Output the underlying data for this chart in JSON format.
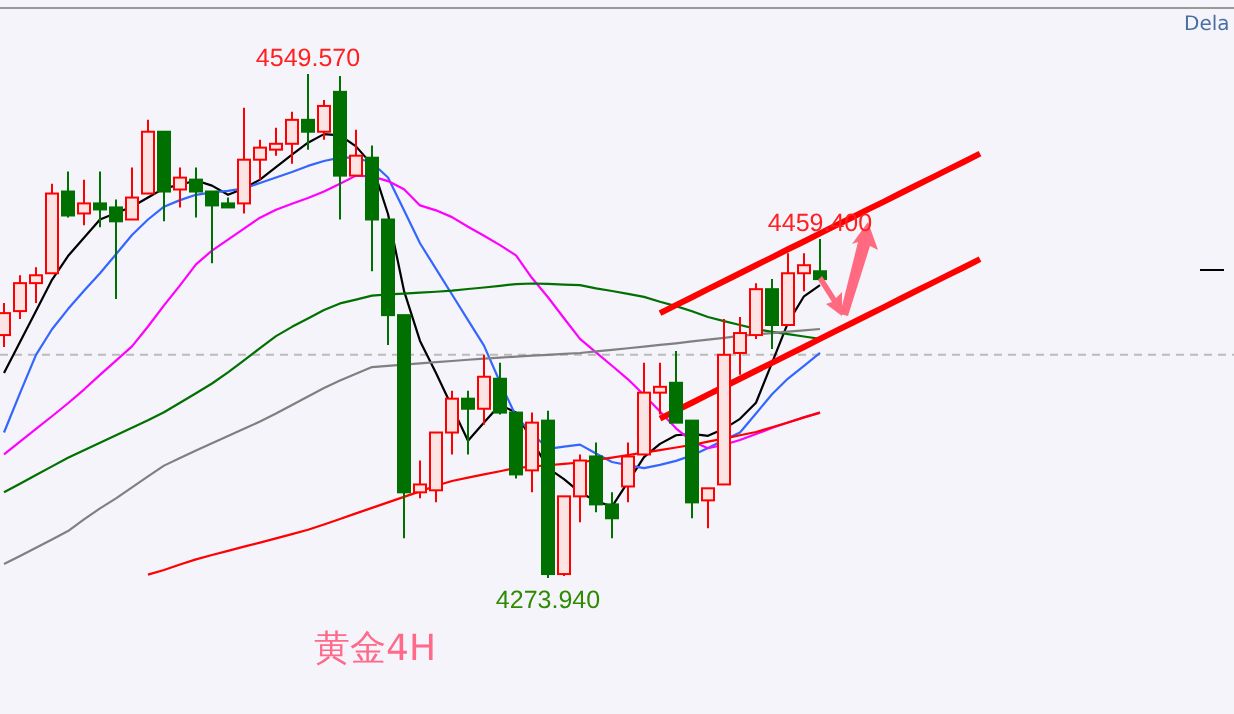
{
  "chart_data": {
    "type": "candlestick",
    "title": "黄金4H",
    "categories": [
      null,
      null,
      null,
      null,
      null,
      null,
      null,
      null,
      null,
      null,
      null,
      null,
      null,
      null,
      null,
      null,
      null,
      null,
      null,
      null,
      null,
      null,
      null,
      null,
      null,
      null,
      null,
      null,
      null,
      null,
      null,
      null,
      null,
      null,
      null,
      null,
      null,
      null,
      null,
      null,
      null,
      null,
      null,
      null,
      null,
      null,
      null,
      null,
      null,
      null,
      null,
      null,
      null,
      null,
      null,
      null,
      null,
      null,
      null,
      null,
      null,
      null
    ],
    "ohlc": [
      [
        4406.8,
        4424.3,
        4400.3,
        4418.8
      ],
      [
        4419.9,
        4439.5,
        4415.6,
        4435.2
      ],
      [
        4435.2,
        4443.9,
        4424.3,
        4439.5
      ],
      [
        4440.6,
        4489.6,
        4440.6,
        4484.2
      ],
      [
        4485.3,
        4496.2,
        4471.1,
        4472.2
      ],
      [
        4473.3,
        4491.8,
        4466.8,
        4478.8
      ],
      [
        4478.8,
        4496.2,
        4465.7,
        4475.5
      ],
      [
        4476.6,
        4480.9,
        4426.5,
        4469.0
      ],
      [
        4470.0,
        4498.4,
        4470.0,
        4482.0
      ],
      [
        4484.2,
        4524.5,
        4484.2,
        4518.0
      ],
      [
        4518.0,
        4518.0,
        4469.0,
        4485.3
      ],
      [
        4486.4,
        4498.4,
        4476.6,
        4492.9
      ],
      [
        4491.8,
        4498.4,
        4471.1,
        4485.3
      ],
      [
        4485.3,
        4485.3,
        4446.1,
        4477.7
      ],
      [
        4478.8,
        4482.0,
        4476.6,
        4476.6
      ],
      [
        4478.8,
        4531.1,
        4473.3,
        4502.7
      ],
      [
        4502.7,
        4513.6,
        4491.8,
        4509.3
      ],
      [
        4508.2,
        4520.2,
        4504.9,
        4511.4
      ],
      [
        4511.4,
        4528.9,
        4500.5,
        4524.5
      ],
      [
        4524.5,
        4549.57,
        4508.2,
        4518.0
      ],
      [
        4518.0,
        4535.4,
        4513.6,
        4532.1
      ],
      [
        4539.8,
        4548.5,
        4470.0,
        4494.0
      ],
      [
        4494.0,
        4519.1,
        4494.0,
        4504.9
      ],
      [
        4503.8,
        4510.4,
        4441.7,
        4470.0
      ],
      [
        4470.0,
        4470.0,
        4401.4,
        4417.7
      ],
      [
        4417.7,
        4417.7,
        4295.7,
        4320.8
      ],
      [
        4320.8,
        4338.2,
        4317.5,
        4325.1
      ],
      [
        4321.9,
        4353.5,
        4315.3,
        4353.5
      ],
      [
        4353.5,
        4376.3,
        4341.5,
        4372.0
      ],
      [
        4372.0,
        4376.3,
        4341.5,
        4366.5
      ],
      [
        4366.5,
        4396.0,
        4357.8,
        4384.0
      ],
      [
        4382.9,
        4391.6,
        4363.3,
        4364.4
      ],
      [
        4364.4,
        4364.4,
        4328.4,
        4330.6
      ],
      [
        4332.8,
        4364.4,
        4320.8,
        4358.9
      ],
      [
        4360.0,
        4365.4,
        4273.94,
        4276.1
      ],
      [
        4276.1,
        4318.6,
        4275.0,
        4318.6
      ],
      [
        4318.6,
        4341.5,
        4304.4,
        4338.2
      ],
      [
        4340.4,
        4348.0,
        4309.9,
        4314.2
      ],
      [
        4314.2,
        4320.8,
        4295.7,
        4306.6
      ],
      [
        4324.0,
        4348.0,
        4315.3,
        4340.4
      ],
      [
        4341.5,
        4391.6,
        4341.5,
        4375.3
      ],
      [
        4375.3,
        4391.6,
        4363.3,
        4378.5
      ],
      [
        4380.7,
        4398.1,
        4358.9,
        4358.9
      ],
      [
        4360.0,
        4360.0,
        4306.6,
        4315.3
      ],
      [
        4316.4,
        4323.0,
        4301.2,
        4323.0
      ],
      [
        4325.1,
        4415.6,
        4325.1,
        4396.0
      ],
      [
        4397.0,
        4416.7,
        4385.1,
        4407.9
      ],
      [
        4406.8,
        4435.2,
        4404.7,
        4431.9
      ],
      [
        4431.9,
        4437.4,
        4399.2,
        4412.3
      ],
      [
        4412.3,
        4451.5,
        4412.3,
        4440.6
      ],
      [
        4440.6,
        4451.5,
        4430.8,
        4445.0
      ],
      [
        4441.7,
        4459.4,
        4437.4,
        4437.4
      ],
      null,
      null,
      null,
      null,
      null,
      null,
      null,
      null,
      null,
      null
    ],
    "series": [
      {
        "type": "line",
        "color": "#000000",
        "values": [
          4386.1,
          4403,
          4420,
          4437,
          4450,
          4460,
          4470,
          4473.5,
          4477,
          4482,
          4487,
          4489,
          4491.3,
          4488.5,
          4483.5,
          4487,
          4491.8,
          4498.6,
          4505.5,
          4512,
          4516.7,
          4516,
          4510,
          4500,
          4473,
          4431,
          4403.6,
          4386,
          null,
          4349,
          4359,
          4368.7,
          4364.4,
          null,
          4334,
          4328,
          4320.8,
          4316,
          4313,
          null,
          4340,
          4347.3,
          4352,
          4352.8,
          4351.7,
          4355.5,
          4361,
          4369.8,
          4391.6,
          4413.6,
          4428,
          4434.1,
          null,
          null,
          null,
          null,
          null,
          null,
          null,
          null,
          null,
          null
        ]
      },
      {
        "type": "line",
        "color": "#3366ff",
        "values": [
          4353.5,
          4375,
          4396,
          4410,
          4421,
          4431,
          4440.6,
          4451,
          4461.5,
          4470,
          4477,
          4480.6,
          4483.5,
          4484.8,
          4485.7,
          4487,
          4490,
          4493,
          4496,
          4499.3,
          4502,
          4503.8,
          4503.8,
          4501,
          4493,
          4475,
          4457,
          4443,
          4429,
          4415,
          4401,
          4381,
          4362.4,
          4353,
          4344.6,
          4345.8,
          4346.9,
          4342,
          4337.4,
          4335.7,
          4334,
          4335.8,
          4338,
          4341,
          4345,
          4349.4,
          4353.5,
          4363.9,
          4374.4,
          4383,
          4390,
          4397,
          null,
          null,
          null,
          null,
          null,
          null,
          null,
          null,
          null,
          null
        ]
      },
      {
        "type": "line",
        "color": "#ff00ff",
        "values": [
          4341.5,
          4348.5,
          4355.5,
          4362.4,
          4369.5,
          4377,
          4385,
          4392.8,
          4400.6,
          4411.5,
          4423,
          4434,
          4445.5,
          4453,
          4459,
          4465,
          4471,
          4475.3,
          4478.6,
          4481.8,
          4485.3,
          4489.6,
          4494,
          4493.6,
          4491,
          4486.5,
          4477.7,
          4475,
          4471.3,
          4466,
          4461.1,
          4456,
          4450.4,
          4438,
          4427.5,
          4416,
          4404.7,
          4397.3,
          4390,
          4382.6,
          4374,
          4365,
          4355.8,
          4348.7,
          4344.9,
          4346.8,
          4349.4,
          4352.7,
          4356,
          4359,
          4361.8,
          4364.4,
          null,
          null,
          null,
          null,
          null,
          null,
          null,
          null,
          null,
          null
        ]
      },
      {
        "type": "line",
        "color": "#007000",
        "values": [
          4320.8,
          4325.5,
          4330.3,
          4335,
          4339.7,
          4343.8,
          4347.9,
          4352,
          4356.1,
          4360.2,
          4364.6,
          4369.8,
          4375,
          4380.3,
          4386.4,
          4393,
          4399.6,
          4406.2,
          4411.3,
          4415.9,
          4420.5,
          4424.1,
          4426.2,
          4428.4,
          4429,
          4429.5,
          4430,
          4430.5,
          4431.1,
          4432,
          4432.8,
          4433.7,
          4434.7,
          4435,
          4434.8,
          4434.4,
          4434.1,
          4432.3,
          4430.9,
          4429.3,
          4427.7,
          4425,
          4422.6,
          4419.8,
          4416.7,
          4414.4,
          4412.3,
          4410.2,
          4408.5,
          4407.3,
          4406,
          4404.7,
          null,
          null,
          null,
          null,
          null,
          null,
          null,
          null,
          null,
          null
        ]
      },
      {
        "type": "line",
        "color": "#808080",
        "values": [
          4281.6,
          4286,
          4290.5,
          4295,
          4299.6,
          4306,
          4312,
          4317.5,
          4323.5,
          4329.5,
          4335.4,
          4339.6,
          4343.6,
          4347.6,
          4351.6,
          4355.5,
          4359.5,
          4363.9,
          4368.6,
          4373.2,
          4377.9,
          4382,
          4385.6,
          4389.3,
          4390,
          4390.6,
          4391.3,
          4392,
          4392.6,
          4393.3,
          4393.9,
          4394.5,
          4395,
          4395.5,
          4396,
          4396.5,
          4397,
          4397.9,
          4398.7,
          4399.6,
          4400.5,
          4401.4,
          4402.3,
          4403.3,
          4404.3,
          4405.3,
          4406.4,
          4407.2,
          4407.9,
          4408.7,
          4409.4,
          4410.1,
          null,
          null,
          null,
          null,
          null,
          null,
          null,
          null,
          null,
          null
        ]
      },
      {
        "type": "line",
        "color": "#ff0000",
        "values": [
          null,
          null,
          null,
          null,
          null,
          null,
          null,
          null,
          null,
          4275.8,
          4278.3,
          4281.3,
          4284.1,
          4286.5,
          4288.8,
          4291.1,
          4293.3,
          4295.6,
          4297.9,
          4300.3,
          4303.2,
          4306.2,
          4309.3,
          4312.3,
          4315.3,
          4318.3,
          4321.3,
          4324.4,
          4327,
          4328.8,
          4330.6,
          4332.3,
          4334.1,
          4334.8,
          4335.6,
          4336.4,
          4337.1,
          4338.5,
          4339.8,
          4341.2,
          4342.5,
          4343.9,
          4345.3,
          4346.7,
          4348.5,
          4350.2,
          4352,
          4353.8,
          4356.4,
          4359,
          4361.8,
          4364.4,
          null,
          null,
          null,
          null,
          null,
          null,
          null,
          null,
          null,
          null
        ]
      },
      {
        "type": "line",
        "color": "#ff0000",
        "values": [
          null,
          null,
          null,
          null,
          null,
          null,
          null,
          null,
          null,
          null,
          null,
          null,
          null,
          null,
          null,
          null,
          null,
          null,
          null,
          null,
          null,
          null,
          null,
          null,
          null,
          null,
          null,
          null,
          null,
          null,
          null,
          null,
          null,
          null,
          null,
          null,
          null,
          null,
          null,
          null,
          null,
          4418.8,
          4423.2,
          4427.5,
          4431.9,
          4436.2,
          4440.6,
          4445.0,
          4449.3,
          4453.7,
          4458.0,
          4462.4,
          4466.8,
          4471.1,
          4475.5,
          4479.8,
          4484.2,
          4488.6,
          4492.9,
          4497.3,
          4501.6,
          4506.0
        ]
      },
      {
        "type": "line",
        "color": "#ff0000",
        "values": [
          null,
          null,
          null,
          null,
          null,
          null,
          null,
          null,
          null,
          null,
          null,
          null,
          null,
          null,
          null,
          null,
          null,
          null,
          null,
          null,
          null,
          null,
          null,
          null,
          null,
          null,
          null,
          null,
          null,
          null,
          null,
          null,
          null,
          null,
          null,
          null,
          null,
          null,
          null,
          null,
          null,
          4361.1,
          4365.5,
          4369.8,
          4374.2,
          4378.5,
          4382.9,
          4387.3,
          4391.6,
          4396.0,
          4400.3,
          4404.7,
          4409.1,
          4413.4,
          4417.8,
          4422.1,
          4426.5,
          4430.9,
          4435.2,
          4439.6,
          4443.9,
          4448.3
        ]
      }
    ],
    "ref_lines": [
      {
        "axis": "y",
        "value": 4396.0,
        "color": "#bbbbbb",
        "line_style": "dashed"
      }
    ],
    "annotations": [
      {
        "text": "4549.570",
        "y": 4549.57
      },
      {
        "text": "4459.400",
        "y": 4459.4
      },
      {
        "text": "4273.940",
        "y": 4273.94
      },
      "Dela"
    ]
  }
}
